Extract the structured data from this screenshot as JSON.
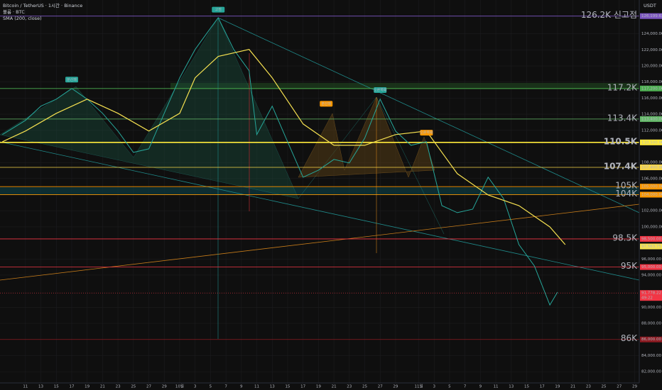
{
  "header": {
    "symbol": "Bitcoin / TetherUS · 1시간 · Binance",
    "volume": "볼륨 · BTC",
    "indicator": "SMA (200, close)",
    "currency": "USDT"
  },
  "chart_data": {
    "type": "line",
    "xlim": [
      -3.3,
      79.6
    ],
    "ylim": [
      80600,
      128200
    ],
    "xticks": [
      {
        "value": 0,
        "label": "11"
      },
      {
        "value": 2,
        "label": "13"
      },
      {
        "value": 4,
        "label": "15"
      },
      {
        "value": 6,
        "label": "17"
      },
      {
        "value": 8,
        "label": "19"
      },
      {
        "value": 10,
        "label": "21"
      },
      {
        "value": 12,
        "label": "23"
      },
      {
        "value": 14,
        "label": "25"
      },
      {
        "value": 16,
        "label": "27"
      },
      {
        "value": 18,
        "label": "29"
      },
      {
        "value": 20,
        "label": "10월"
      },
      {
        "value": 22,
        "label": "3"
      },
      {
        "value": 24,
        "label": "5"
      },
      {
        "value": 26,
        "label": "7"
      },
      {
        "value": 28,
        "label": "9"
      },
      {
        "value": 30,
        "label": "11"
      },
      {
        "value": 32,
        "label": "13"
      },
      {
        "value": 34,
        "label": "15"
      },
      {
        "value": 36,
        "label": "17"
      },
      {
        "value": 38,
        "label": "19"
      },
      {
        "value": 40,
        "label": "21"
      },
      {
        "value": 42,
        "label": "23"
      },
      {
        "value": 44,
        "label": "25"
      },
      {
        "value": 46,
        "label": "27"
      },
      {
        "value": 48,
        "label": "29"
      },
      {
        "value": 51,
        "label": "11월"
      },
      {
        "value": 53,
        "label": "3"
      },
      {
        "value": 55,
        "label": "5"
      },
      {
        "value": 57,
        "label": "7"
      },
      {
        "value": 59,
        "label": "9"
      },
      {
        "value": 61,
        "label": "11"
      },
      {
        "value": 63,
        "label": "13"
      },
      {
        "value": 65,
        "label": "15"
      },
      {
        "value": 67,
        "label": "17"
      },
      {
        "value": 69,
        "label": "19"
      },
      {
        "value": 71,
        "label": "21"
      },
      {
        "value": 73,
        "label": "23"
      },
      {
        "value": 75,
        "label": "25"
      },
      {
        "value": 77,
        "label": "27"
      },
      {
        "value": 79,
        "label": "29"
      }
    ],
    "yticks": [
      {
        "value": 82000,
        "label": "82,000.00"
      },
      {
        "value": 84000,
        "label": "84,000.00"
      },
      {
        "value": 88000,
        "label": "88,000.00"
      },
      {
        "value": 90000,
        "label": "90,000.00"
      },
      {
        "value": 94000,
        "label": "94,000.00"
      },
      {
        "value": 96000,
        "label": "96,000.00"
      },
      {
        "value": 100000,
        "label": "100,000.00"
      },
      {
        "value": 102000,
        "label": "102,000.00"
      },
      {
        "value": 106000,
        "label": "106,000.00"
      },
      {
        "value": 108000,
        "label": "108,000.00"
      },
      {
        "value": 112000,
        "label": "112,000.00"
      },
      {
        "value": 114000,
        "label": "114,000.00"
      },
      {
        "value": 116000,
        "label": "116,000.00"
      },
      {
        "value": 118000,
        "label": "118,000.00"
      },
      {
        "value": 120000,
        "label": "120,000.00"
      },
      {
        "value": 122000,
        "label": "122,000.00"
      },
      {
        "value": 124000,
        "label": "124,000.00"
      }
    ],
    "grid": true,
    "series": [
      {
        "name": "Bitcoin / TetherUS",
        "color": "#26a69a",
        "x": [
          -3,
          0,
          2,
          4,
          6,
          8,
          10,
          12,
          14,
          16,
          18,
          20,
          22,
          24,
          25,
          27,
          29,
          30,
          32,
          34,
          36,
          38,
          40,
          42,
          44,
          46,
          48,
          50,
          52,
          54,
          56,
          58,
          60,
          62,
          64,
          66,
          68,
          69
        ],
        "values": [
          111470,
          113230,
          115000,
          115880,
          117200,
          115880,
          114110,
          111900,
          109260,
          109700,
          114110,
          118530,
          122060,
          124700,
          126000,
          122060,
          119410,
          111470,
          115000,
          110580,
          106170,
          107050,
          108380,
          107940,
          111030,
          115880,
          111900,
          110140,
          110580,
          102640,
          101760,
          102200,
          106170,
          103520,
          97790,
          95140,
          90290,
          91880
        ]
      },
      {
        "name": "SMA (200, close)",
        "color": "#f5e050",
        "x": [
          -3,
          0,
          4,
          8,
          12,
          16,
          20,
          22,
          25,
          29,
          32,
          36,
          40,
          44,
          48,
          52,
          56,
          60,
          64,
          68,
          70
        ],
        "values": [
          110580,
          111910,
          114110,
          115880,
          114110,
          111910,
          114110,
          118530,
          121180,
          122060,
          118530,
          112790,
          110140,
          110140,
          111470,
          111910,
          106610,
          103960,
          102640,
          99990,
          97790
        ]
      }
    ],
    "levels": [
      {
        "value": 126199.63,
        "label": "126.2K 신고점",
        "axis_label": "126,199.63",
        "color": "#7e57c2"
      },
      {
        "value": 117200,
        "label": "117.2K",
        "axis_label": "117,200.00",
        "color": "#4caf50"
      },
      {
        "value": 113400,
        "label": "113.4K",
        "axis_label": "113,400.00",
        "color": "#66bb6a"
      },
      {
        "value": 110500,
        "label": "110.5K",
        "axis_label": "110,500.00",
        "color": "#ffeb3b"
      },
      {
        "value": 107400,
        "label": "107.4K",
        "axis_label": "107,400.00",
        "color": "#f9d648"
      },
      {
        "value": 105000,
        "label": "105K",
        "axis_label": "105,000.00",
        "color": "#ff9800"
      },
      {
        "value": 104000,
        "label": "104K",
        "axis_label": "104,000.00",
        "color": "#ff9800"
      },
      {
        "value": 98500,
        "label": "98.5K",
        "axis_label": "98,500.00",
        "color": "#f23645"
      },
      {
        "value": 95000,
        "label": "95K",
        "axis_label": "95,000.00",
        "color": "#f23645"
      },
      {
        "value": 86000,
        "label": "86K",
        "axis_label": "86,000.00",
        "color": "#8e1b22"
      }
    ],
    "sma_last": {
      "value": 97563.75,
      "label": "97,563.75",
      "color": "#f5e050"
    },
    "price_last": {
      "value": 91778.22,
      "label": "91,778.22",
      "countdown": "49:22",
      "color": "#f23645"
    },
    "annotations": [
      {
        "text": "고점",
        "x": 25,
        "y": 127000,
        "color": "#26a69a"
      },
      {
        "text": "분산패",
        "x": 6,
        "y": 118300,
        "color": "#26a69a"
      },
      {
        "text": "분산패",
        "x": 39,
        "y": 115300,
        "color": "#ff9800"
      },
      {
        "text": "오른쪽패",
        "x": 46,
        "y": 117000,
        "color": "#26a69a"
      },
      {
        "text": "오른쪽패",
        "x": 52,
        "y": 111700,
        "color": "#ff9800"
      }
    ]
  }
}
